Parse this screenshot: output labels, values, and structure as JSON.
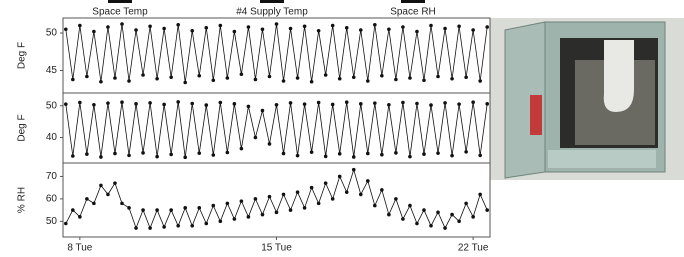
{
  "chart_data": [
    {
      "type": "line",
      "y_label": "Deg F",
      "x": [
        7.5,
        7.75,
        8,
        8.25,
        8.5,
        8.75,
        9,
        9.25,
        9.5,
        9.75,
        10,
        10.25,
        10.5,
        10.75,
        11,
        11.25,
        11.5,
        11.75,
        12,
        12.25,
        12.5,
        12.75,
        13,
        13.25,
        13.5,
        13.75,
        14,
        14.25,
        14.5,
        14.75,
        15,
        15.25,
        15.5,
        15.75,
        16,
        16.25,
        16.5,
        16.75,
        17,
        17.25,
        17.5,
        17.75,
        18,
        18.25,
        18.5,
        18.75,
        19,
        19.25,
        19.5,
        19.75,
        20,
        20.25,
        20.5,
        20.75,
        21,
        21.25,
        21.5,
        21.75,
        22,
        22.25,
        22.5
      ],
      "series": [
        {
          "name": "Space Temp",
          "color": "#111111",
          "values": [
            50.5,
            43.8,
            51,
            44.2,
            50.2,
            43.5,
            50.8,
            44,
            51.2,
            43.6,
            50.4,
            44.4,
            50.9,
            43.9,
            50.6,
            44.1,
            51.1,
            43.4,
            50.3,
            44.3,
            50.7,
            43.7,
            51,
            44,
            50.2,
            44.5,
            50.8,
            43.8,
            50.5,
            44.2,
            51.2,
            43.6,
            50.6,
            44,
            50.9,
            43.5,
            50.3,
            44.4,
            51,
            43.9,
            50.7,
            44.1,
            50.4,
            43.6,
            51.1,
            44.3,
            50.5,
            43.8,
            50.8,
            44,
            50.2,
            43.7,
            51,
            44.2,
            50.6,
            43.9,
            50.9,
            44.1,
            50.4,
            43.6,
            50.8
          ]
        }
      ],
      "xlim": [
        7.4,
        22.6
      ],
      "ylim": [
        42,
        52
      ],
      "yticks": [
        45,
        50
      ]
    },
    {
      "type": "line",
      "y_label": "Deg F",
      "x": [
        7.5,
        7.75,
        8,
        8.25,
        8.5,
        8.75,
        9,
        9.25,
        9.5,
        9.75,
        10,
        10.25,
        10.5,
        10.75,
        11,
        11.25,
        11.5,
        11.75,
        12,
        12.25,
        12.5,
        12.75,
        13,
        13.25,
        13.5,
        13.75,
        14,
        14.25,
        14.5,
        14.75,
        15,
        15.25,
        15.5,
        15.75,
        16,
        16.25,
        16.5,
        16.75,
        17,
        17.25,
        17.5,
        17.75,
        18,
        18.25,
        18.5,
        18.75,
        19,
        19.25,
        19.5,
        19.75,
        20,
        20.25,
        20.5,
        20.75,
        21,
        21.25,
        21.5,
        21.75,
        22,
        22.25,
        22.5
      ],
      "series": [
        {
          "name": "#4 Supply Temp",
          "color": "#111111",
          "values": [
            50.5,
            34.2,
            51,
            34.8,
            50.3,
            33.9,
            50.8,
            35,
            51.1,
            34.4,
            50.6,
            35.2,
            50.9,
            34,
            50.4,
            34.7,
            51.2,
            33.8,
            50.7,
            35.1,
            50.2,
            34.5,
            51,
            35.3,
            50.6,
            36.5,
            49.8,
            40,
            48.5,
            38,
            50.3,
            35,
            50.9,
            34.3,
            50.5,
            35.4,
            51,
            34.1,
            50.4,
            34.9,
            51.1,
            33.9,
            50.6,
            35,
            50.8,
            34.6,
            50.3,
            35.2,
            51,
            34,
            50.7,
            34.8,
            50.2,
            35.1,
            50.9,
            34.3,
            50.5,
            35.5,
            51.1,
            34.4,
            50.6
          ]
        }
      ],
      "xlim": [
        7.4,
        22.6
      ],
      "ylim": [
        32,
        54
      ],
      "yticks": [
        40,
        50
      ]
    },
    {
      "type": "line",
      "y_label": "% RH",
      "x": [
        7.5,
        7.75,
        8,
        8.25,
        8.5,
        8.75,
        9,
        9.25,
        9.5,
        9.75,
        10,
        10.25,
        10.5,
        10.75,
        11,
        11.25,
        11.5,
        11.75,
        12,
        12.25,
        12.5,
        12.75,
        13,
        13.25,
        13.5,
        13.75,
        14,
        14.25,
        14.5,
        14.75,
        15,
        15.25,
        15.5,
        15.75,
        16,
        16.25,
        16.5,
        16.75,
        17,
        17.25,
        17.5,
        17.75,
        18,
        18.25,
        18.5,
        18.75,
        19,
        19.25,
        19.5,
        19.75,
        20,
        20.25,
        20.5,
        20.75,
        21,
        21.25,
        21.5,
        21.75,
        22,
        22.25,
        22.5
      ],
      "series": [
        {
          "name": "Space RH",
          "color": "#111111",
          "values": [
            49,
            55,
            52,
            60,
            58,
            66,
            62,
            67,
            58,
            56,
            47,
            55,
            47,
            55,
            47.5,
            55,
            48,
            56,
            48,
            56,
            49,
            57,
            50,
            58,
            51,
            59,
            52,
            60,
            53,
            61,
            54,
            62,
            55,
            63,
            56,
            65,
            58,
            67,
            60,
            70,
            63,
            73,
            62,
            68,
            57,
            64,
            53,
            60,
            51,
            57,
            49,
            55,
            48,
            54,
            47,
            53,
            50,
            58,
            52,
            62,
            55
          ]
        }
      ],
      "xlim": [
        7.4,
        22.6
      ],
      "ylim": [
        43,
        76
      ],
      "yticks": [
        50,
        60,
        70
      ],
      "xticks": [
        {
          "value": 8,
          "label": "8 Tue"
        },
        {
          "value": 15,
          "label": "15 Tue"
        },
        {
          "value": 22,
          "label": "22 Tue"
        }
      ]
    }
  ]
}
